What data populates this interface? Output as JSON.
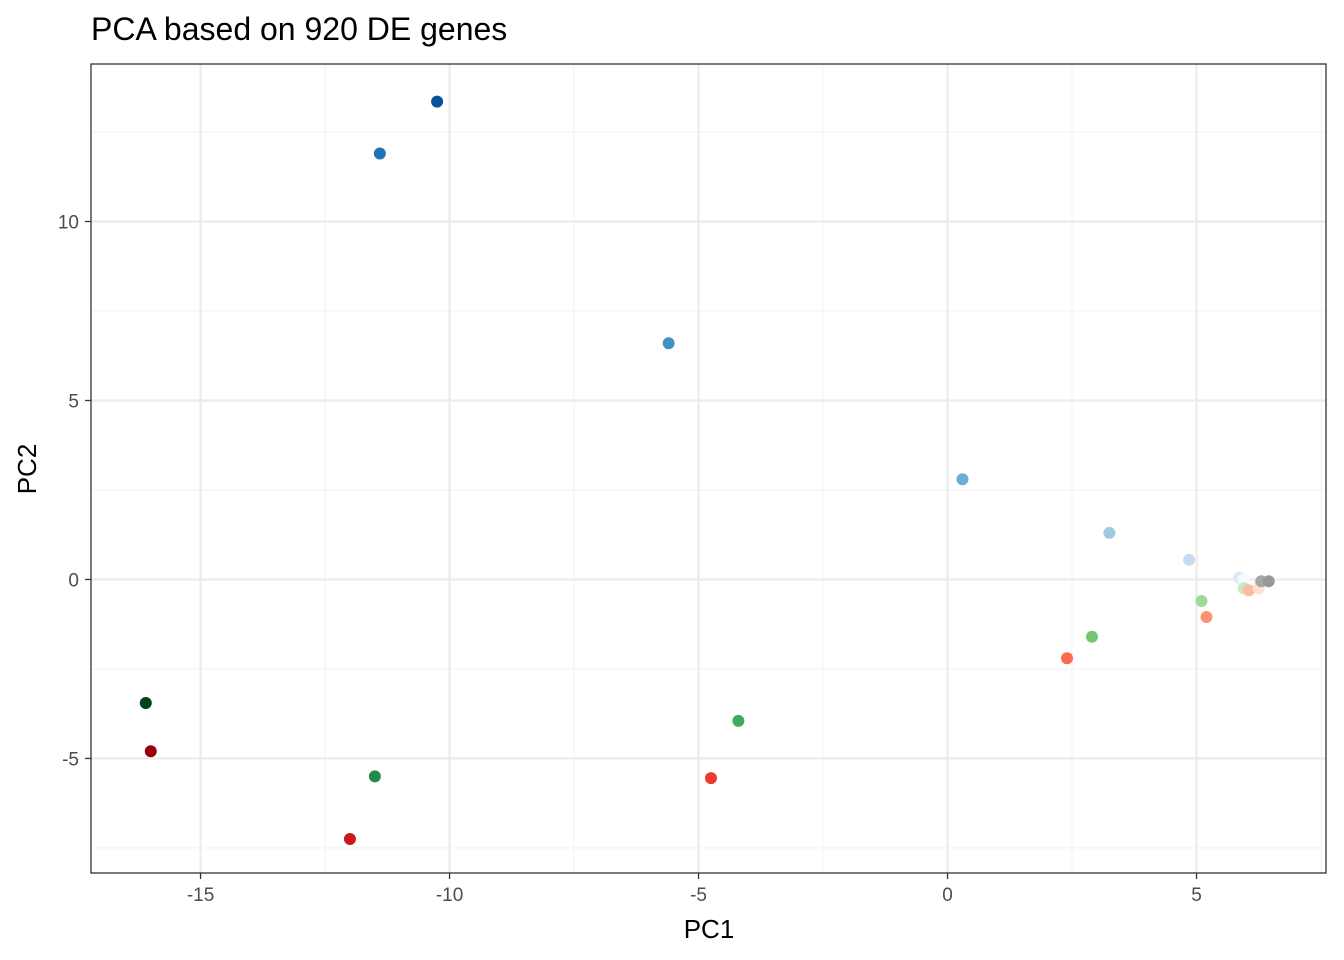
{
  "chart_data": {
    "type": "scatter",
    "title": "PCA based on 920 DE genes",
    "xlabel": "PC1",
    "ylabel": "PC2",
    "xlim": [
      -17.2,
      7.6
    ],
    "ylim": [
      -8.2,
      14.4
    ],
    "x_ticks": [
      -15,
      -10,
      -5,
      0,
      5
    ],
    "x_tick_labels": [
      "-15",
      "-10",
      "-5",
      "0",
      "5"
    ],
    "y_ticks": [
      -5,
      0,
      5,
      10
    ],
    "y_tick_labels": [
      "-5",
      "0",
      "5",
      "10"
    ],
    "grid": true,
    "legend": "none",
    "points": [
      {
        "x": -10.25,
        "y": 13.35,
        "color": "#08519c"
      },
      {
        "x": -11.4,
        "y": 11.9,
        "color": "#2171b5"
      },
      {
        "x": -5.6,
        "y": 6.6,
        "color": "#4292c6"
      },
      {
        "x": 0.3,
        "y": 2.8,
        "color": "#6baed6"
      },
      {
        "x": 3.25,
        "y": 1.3,
        "color": "#9ecae1"
      },
      {
        "x": 4.85,
        "y": 0.55,
        "color": "#c6dbef"
      },
      {
        "x": 5.85,
        "y": 0.05,
        "color": "#deebf7"
      },
      {
        "x": 5.95,
        "y": 0.0,
        "color": "#f7fbff"
      },
      {
        "x": -16.1,
        "y": -3.45,
        "color": "#00441b"
      },
      {
        "x": -11.5,
        "y": -5.5,
        "color": "#238b45"
      },
      {
        "x": -4.2,
        "y": -3.95,
        "color": "#41ab5d"
      },
      {
        "x": 2.9,
        "y": -1.6,
        "color": "#74c476"
      },
      {
        "x": 5.1,
        "y": -0.6,
        "color": "#a1d99b"
      },
      {
        "x": 5.95,
        "y": -0.25,
        "color": "#c7e9c0"
      },
      {
        "x": 6.25,
        "y": -0.2,
        "color": "#e5f5e0"
      },
      {
        "x": -16.0,
        "y": -4.8,
        "color": "#99000d"
      },
      {
        "x": -12.0,
        "y": -7.25,
        "color": "#cb181d"
      },
      {
        "x": -4.75,
        "y": -5.55,
        "color": "#ef3b2c"
      },
      {
        "x": 2.4,
        "y": -2.2,
        "color": "#fb6a4a"
      },
      {
        "x": 5.2,
        "y": -1.05,
        "color": "#fc9272"
      },
      {
        "x": 6.05,
        "y": -0.3,
        "color": "#fcbba1"
      },
      {
        "x": 6.25,
        "y": -0.25,
        "color": "#fee0d2"
      },
      {
        "x": 6.3,
        "y": -0.05,
        "color": "#a6a6a6"
      },
      {
        "x": 6.45,
        "y": -0.05,
        "color": "#999999"
      }
    ]
  },
  "colors": {
    "panel_border": "#333333",
    "grid_major": "#ebebeb",
    "grid_minor": "#f3f3f3",
    "tick_text": "#4d4d4d"
  }
}
